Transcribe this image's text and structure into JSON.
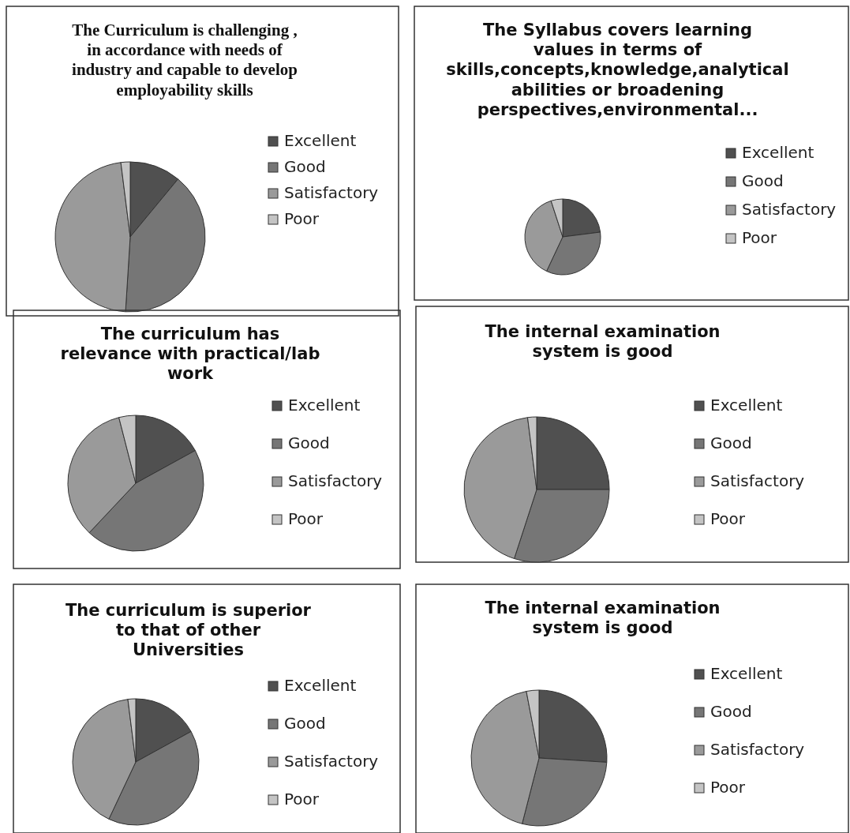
{
  "chart_data": [
    {
      "type": "pie",
      "title": "The Curriculum is challenging , in accordance with needs of industry and capable to develop employability   skills",
      "categories": [
        "Excellent",
        "Good",
        "Satisfactory",
        "Poor"
      ],
      "values": [
        11,
        40,
        47,
        2
      ],
      "colors": [
        "#505050",
        "#767676",
        "#9a9a9a",
        "#c4c4c4"
      ],
      "legend": "right"
    },
    {
      "type": "pie",
      "title": "The Syllabus covers learning values in terms of skills,concepts,knowledge,analytical abilities or broadening perspectives,environmental...",
      "categories": [
        "Excellent",
        "Good",
        "Satisfactory",
        "Poor"
      ],
      "values": [
        23,
        34,
        38,
        5
      ],
      "colors": [
        "#505050",
        "#767676",
        "#9a9a9a",
        "#c4c4c4"
      ],
      "legend": "right"
    },
    {
      "type": "pie",
      "title": "The curriculum has relevance with practical/lab work",
      "categories": [
        "Excellent",
        "Good",
        "Satisfactory",
        "Poor"
      ],
      "values": [
        17,
        45,
        34,
        4
      ],
      "colors": [
        "#505050",
        "#767676",
        "#9a9a9a",
        "#c4c4c4"
      ],
      "legend": "right"
    },
    {
      "type": "pie",
      "title": "The internal examination system is good",
      "categories": [
        "Excellent",
        "Good",
        "Satisfactory",
        "Poor"
      ],
      "values": [
        25,
        30,
        43,
        2
      ],
      "colors": [
        "#505050",
        "#767676",
        "#9a9a9a",
        "#c4c4c4"
      ],
      "legend": "right"
    },
    {
      "type": "pie",
      "title": "The curriculum is superior to that of  other Universities",
      "categories": [
        "Excellent",
        "Good",
        "Satisfactory",
        "Poor"
      ],
      "values": [
        17,
        40,
        41,
        2
      ],
      "colors": [
        "#505050",
        "#767676",
        "#9a9a9a",
        "#c4c4c4"
      ],
      "legend": "right"
    },
    {
      "type": "pie",
      "title": "The internal examination system is good",
      "categories": [
        "Excellent",
        "Good",
        "Satisfactory",
        "Poor"
      ],
      "values": [
        26,
        28,
        43,
        3
      ],
      "colors": [
        "#505050",
        "#767676",
        "#9a9a9a",
        "#c4c4c4"
      ],
      "legend": "right"
    }
  ]
}
